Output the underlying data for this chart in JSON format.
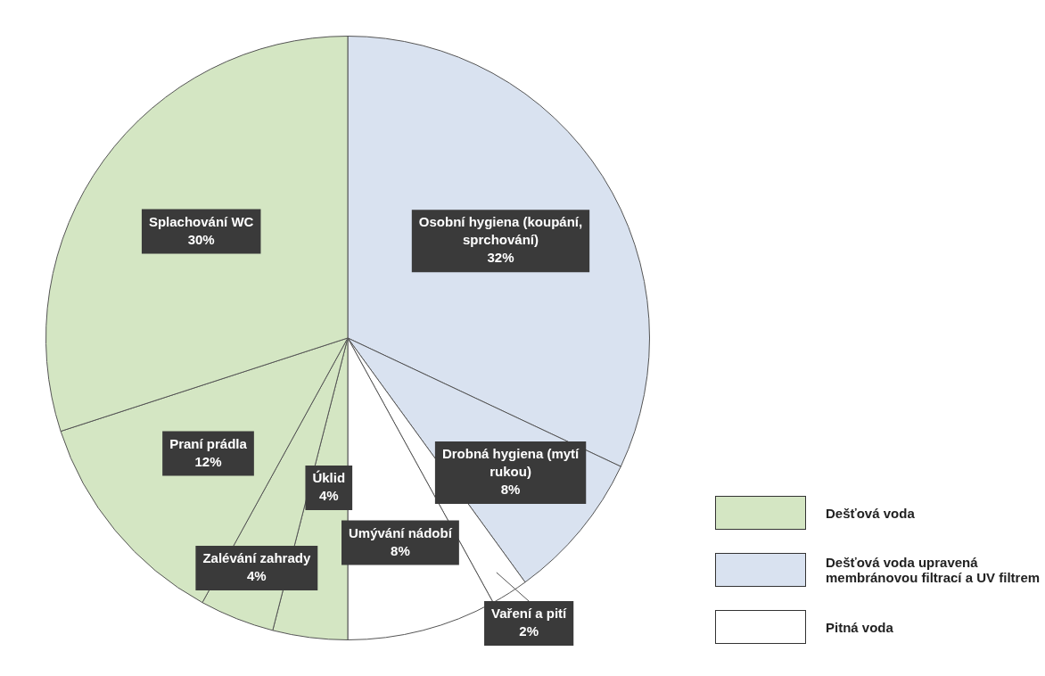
{
  "chart_data": {
    "type": "pie",
    "categories": [
      "Osobní hygiena (koupání, sprchování)",
      "Drobná hygiena (mytí rukou)",
      "Vaření a pití",
      "Umývání nádobí",
      "Úklid",
      "Zalévání zahrady",
      "Praní prádla",
      "Splachování WC"
    ],
    "values": [
      32,
      8,
      2,
      8,
      4,
      4,
      12,
      30
    ],
    "colors": [
      "#d9e2f0",
      "#d9e2f0",
      "#ffffff",
      "#ffffff",
      "#d4e6c3",
      "#d4e6c3",
      "#d4e6c3",
      "#d4e6c3"
    ],
    "value_labels": [
      "32%",
      "8%",
      "2%",
      "8%",
      "4%",
      "4%",
      "12%",
      "30%"
    ],
    "annotations": [
      "Dešťová voda",
      "Dešťová voda upravená membránovou filtrací a UV filtrem",
      "Pitná voda"
    ]
  }
}
